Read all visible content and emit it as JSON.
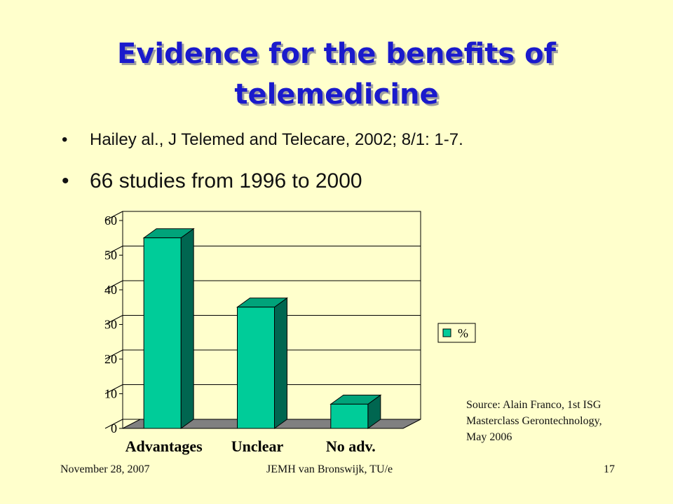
{
  "slide": {
    "title_line1": "Evidence for the benefits of",
    "title_line2": "telemedicine",
    "bullets": [
      "Hailey al., J Telemed and Telecare, 2002; 8/1: 1-7.",
      "66 studies from 1996 to 2000"
    ],
    "source_lines": [
      "Source:  Alain Franco, 1st ISG",
      "Masterclass Gerontechnology,",
      "May 2006"
    ],
    "footer": {
      "date": "November 28, 2007",
      "author": "JEMH van Bronswijk, TU/e",
      "page": "17"
    }
  },
  "colors": {
    "background": "#ffffcc",
    "title": "#1a1acc",
    "bar_front": "#00cc99",
    "bar_side": "#006650",
    "bar_top": "#00a37a",
    "floor": "#808080"
  },
  "chart_data": {
    "type": "bar",
    "style": "3d-column",
    "categories": [
      "Advantages",
      "Unclear",
      "No adv."
    ],
    "series": [
      {
        "name": "%",
        "values": [
          55,
          35,
          7
        ]
      }
    ],
    "ylim": [
      0,
      60
    ],
    "yticks": [
      "0",
      "10",
      "20",
      "30",
      "40",
      "50",
      "60"
    ],
    "grid": true,
    "legend_position": "right",
    "title": "",
    "xlabel": "",
    "ylabel": ""
  }
}
